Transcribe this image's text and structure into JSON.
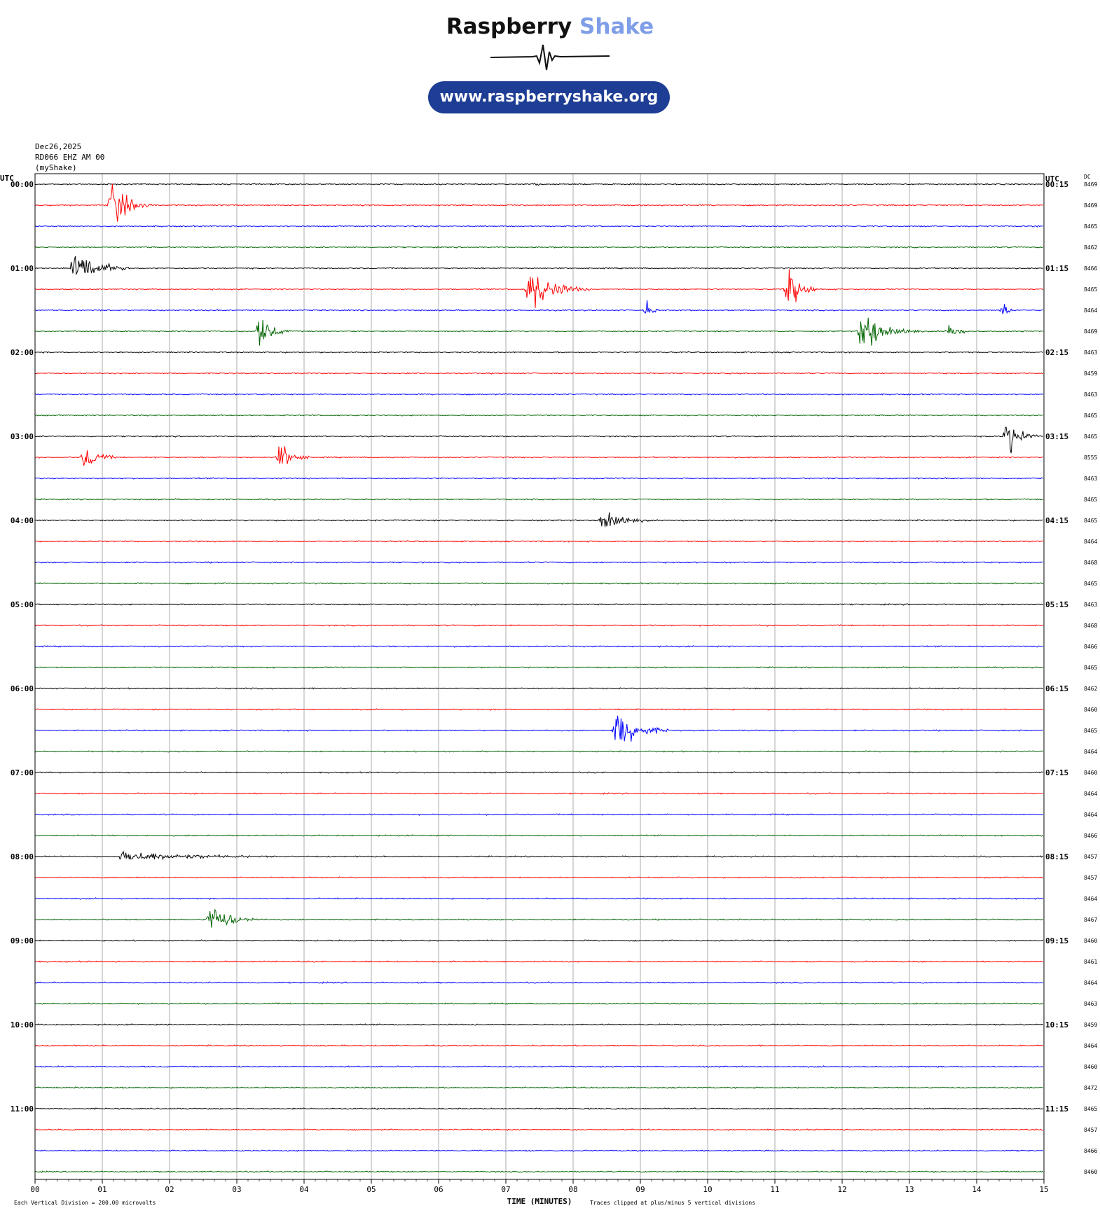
{
  "header": {
    "logo_word1": "Raspberry",
    "logo_word2": "Shake",
    "url": "www.raspberryshake.org",
    "date": "Dec26,2025",
    "station": "RD066 EHZ AM 00",
    "source": "(myShake)"
  },
  "colors": {
    "logo_accent": "#7f9ee8",
    "badge_bg": "#1e3d94",
    "trace_cycle": [
      "#000000",
      "#ff0000",
      "#0000ff",
      "#006400"
    ]
  },
  "chart_data": {
    "type": "line",
    "chart_kind": "helicorder",
    "xlabel": "TIME (MINUTES)",
    "xlim": [
      0,
      15
    ],
    "x_ticks": [
      "00",
      "01",
      "02",
      "03",
      "04",
      "05",
      "06",
      "07",
      "08",
      "09",
      "10",
      "11",
      "12",
      "13",
      "14",
      "15"
    ],
    "left_axis_label": "UTC",
    "right_axis_label": "UTC",
    "dc_label": "DC",
    "minutes_per_line": 15,
    "left_hour_labels": [
      "00:00",
      "01:00",
      "02:00",
      "03:00",
      "04:00",
      "05:00",
      "06:00",
      "07:00",
      "08:00",
      "09:00",
      "10:00",
      "11:00"
    ],
    "right_hour_labels": [
      "00:15",
      "01:15",
      "02:15",
      "03:15",
      "04:15",
      "05:15",
      "06:15",
      "07:15",
      "08:15",
      "09:15",
      "10:15",
      "11:15"
    ],
    "dc_values": [
      "8469",
      "8469",
      "8465",
      "8462",
      "8466",
      "8465",
      "8464",
      "8469",
      "8463",
      "8459",
      "8463",
      "8465",
      "8465",
      "8555",
      "8463",
      "8465",
      "8465",
      "8464",
      "8468",
      "8465",
      "8463",
      "8468",
      "8466",
      "8465",
      "8462",
      "8460",
      "8465",
      "8464",
      "8460",
      "8464",
      "8464",
      "8466",
      "8457",
      "8457",
      "8464",
      "8467",
      "8460",
      "8461",
      "8464",
      "8463",
      "8459",
      "8464",
      "8460",
      "8472",
      "8465",
      "8457",
      "8466",
      "8460"
    ],
    "footer_left": "Each Vertical Division =  200.00 microvolts",
    "footer_right": "Traces clipped at plus/minus 5 vertical divisions",
    "grid": true,
    "events": [
      {
        "line": 1,
        "minute": 1.15,
        "amplitude": 5,
        "duration": 0.6
      },
      {
        "line": 4,
        "minute": 0.6,
        "amplitude": 5,
        "duration": 0.8
      },
      {
        "line": 5,
        "minute": 7.35,
        "amplitude": 5,
        "duration": 0.9
      },
      {
        "line": 6,
        "minute": 9.1,
        "amplitude": 1.6,
        "duration": 0.25
      },
      {
        "line": 7,
        "minute": 3.35,
        "amplitude": 3.5,
        "duration": 0.5
      },
      {
        "line": 5,
        "minute": 11.2,
        "amplitude": 4.5,
        "duration": 0.5
      },
      {
        "line": 7,
        "minute": 12.3,
        "amplitude": 5,
        "duration": 0.9
      },
      {
        "line": 7,
        "minute": 13.6,
        "amplitude": 2.7,
        "duration": 0.3
      },
      {
        "line": 6,
        "minute": 14.4,
        "amplitude": 1.8,
        "duration": 0.25
      },
      {
        "line": 13,
        "minute": 0.75,
        "amplitude": 3.0,
        "duration": 0.5
      },
      {
        "line": 13,
        "minute": 3.65,
        "amplitude": 3.0,
        "duration": 0.5
      },
      {
        "line": 12,
        "minute": 14.45,
        "amplitude": 4.5,
        "duration": 0.5
      },
      {
        "line": 16,
        "minute": 8.45,
        "amplitude": 3.5,
        "duration": 0.7
      },
      {
        "line": 26,
        "minute": 8.65,
        "amplitude": 4.8,
        "duration": 0.8
      },
      {
        "line": 32,
        "minute": 1.3,
        "amplitude": 1.1,
        "duration": 3.2
      },
      {
        "line": 35,
        "minute": 2.6,
        "amplitude": 3.5,
        "duration": 0.8
      },
      {
        "line": 0,
        "minute": 7.45,
        "amplitude": 0.4,
        "duration": 0.2
      }
    ]
  }
}
